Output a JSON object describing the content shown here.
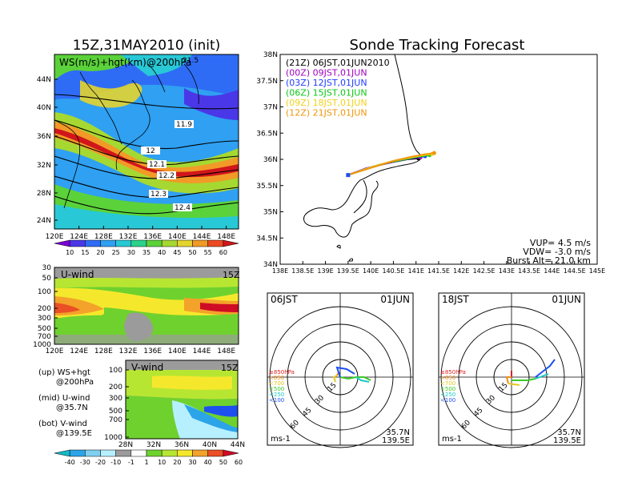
{
  "left": {
    "title": "15Z,31MAY2010 (init)",
    "map_label": "WS(m/s)+hgt(km)@200hPa",
    "map_corner": "21.5",
    "lat_ticks": [
      "44N",
      "40N",
      "36N",
      "32N",
      "28N",
      "24N"
    ],
    "lon_ticks": [
      "120E",
      "124E",
      "128E",
      "132E",
      "136E",
      "140E",
      "144E",
      "148E"
    ],
    "contour_labels": [
      "11.9",
      "12",
      "12.1",
      "12.2",
      "12.3",
      "12.4"
    ],
    "ws_colorbar": [
      "10",
      "15",
      "20",
      "25",
      "30",
      "35",
      "40",
      "45",
      "50",
      "55",
      "60"
    ],
    "ws_colors": [
      "#7a00d6",
      "#4a37e8",
      "#2f6cf5",
      "#2fa0f2",
      "#28c8d6",
      "#2bd28a",
      "#5bd23a",
      "#a6d832",
      "#e4d42f",
      "#f29a27",
      "#ec4b21",
      "#d0161b"
    ],
    "uwind": {
      "label": "U-wind",
      "time": "15Z",
      "p_ticks": [
        "30",
        "50",
        "100",
        "200",
        "300",
        "500",
        "700",
        "1000"
      ],
      "lon_ticks": [
        "120E",
        "124E",
        "128E",
        "132E",
        "136E",
        "140E",
        "144E",
        "148E"
      ]
    },
    "vwind": {
      "label": "V-wind",
      "time": "15Z",
      "p_ticks": [
        "100",
        "200",
        "300",
        "500",
        "700",
        "1000"
      ],
      "lat_ticks": [
        "28N",
        "32N",
        "36N",
        "40N",
        "44N"
      ]
    },
    "legend": {
      "l1a": "(up) WS+hgt",
      "l1b": "@200hPa",
      "l2a": "(mid) U-wind",
      "l2b": "@35.7N",
      "l3a": "(bot) V-wind",
      "l3b": "@139.5E"
    },
    "wind_colorbar": [
      "-40",
      "-30",
      "-20",
      "-10",
      "-1",
      "1",
      "10",
      "20",
      "30",
      "40",
      "50",
      "60"
    ],
    "wind_colors": [
      "#15b9c6",
      "#2ca4e8",
      "#7fd0f0",
      "#b6f0ff",
      "#9b9b9b",
      "#ffffff",
      "#6fd12e",
      "#b7e632",
      "#f5e82c",
      "#f3a22a",
      "#ea4f25",
      "#cf0c25"
    ]
  },
  "right": {
    "title": "Sonde Tracking Forecast",
    "lat_ticks": [
      "38N",
      "37.5N",
      "37N",
      "36.5N",
      "36N",
      "35.5N",
      "35N",
      "34.5N",
      "34N"
    ],
    "lon_ticks": [
      "138E",
      "138.5E",
      "139E",
      "139.5E",
      "140E",
      "140.5E",
      "141E",
      "141.5E",
      "142E",
      "142.5E",
      "143E",
      "143.5E",
      "144E",
      "144.5E",
      "145E"
    ],
    "launches": [
      {
        "label": "(21Z) 06JST,01JUN2010",
        "color": "#000000"
      },
      {
        "label": "(00Z) 09JST,01JUN",
        "color": "#a000c0"
      },
      {
        "label": "(03Z) 12JST,01JUN",
        "color": "#1e3cff"
      },
      {
        "label": "(06Z) 15JST,01JUN",
        "color": "#0ac814"
      },
      {
        "label": "(09Z) 18JST,01JUN",
        "color": "#f0d21e"
      },
      {
        "label": "(12Z) 21JST,01JUN",
        "color": "#f0960a"
      }
    ],
    "params": {
      "vup": "VUP= 4.5 m/s",
      "vdw": "VDW= -3.0 m/s",
      "burst": "Burst Alt= 21.0 km"
    },
    "polar_left": {
      "time": "06JST",
      "date": "01JUN",
      "loc1": "35.7N",
      "loc2": "139.5E",
      "unit": "ms-1"
    },
    "polar_right": {
      "time": "18JST",
      "date": "01JUN",
      "loc1": "35.7N",
      "loc2": "139.5E",
      "unit": "ms-1"
    },
    "polar_rings": [
      "15",
      "30",
      "45",
      "60"
    ],
    "pressure_levels": [
      {
        "label": "≥850hPa",
        "color": "#e01e1e"
      },
      {
        "label": "<850",
        "color": "#f08c1e"
      },
      {
        "label": "<700",
        "color": "#e6c81e"
      },
      {
        "label": "<500",
        "color": "#3cc828"
      },
      {
        "label": "<250",
        "color": "#1ec8c8"
      },
      {
        "label": "<100",
        "color": "#1e50f0"
      }
    ]
  },
  "chart_data": [
    {
      "type": "heatmap",
      "title": "15Z,31MAY2010 (init)",
      "subtitle": "WS(m/s)+hgt(km)@200hPa",
      "xlim": [
        120,
        150
      ],
      "ylim": [
        22,
        47
      ],
      "colorbar": [
        10,
        15,
        20,
        25,
        30,
        35,
        40,
        45,
        50,
        55,
        60
      ],
      "contours": [
        {
          "label": "11.9",
          "value": 11.9
        },
        {
          "label": "12",
          "value": 12
        },
        {
          "label": "12.1",
          "value": 12.1
        },
        {
          "label": "12.2",
          "value": 12.2
        },
        {
          "label": "12.3",
          "value": 12.3
        },
        {
          "label": "12.4",
          "value": 12.4
        }
      ]
    },
    {
      "type": "heatmap",
      "title": "U-wind",
      "x_ticks": [
        "120E",
        "124E",
        "128E",
        "132E",
        "136E",
        "140E",
        "144E",
        "148E"
      ],
      "y_ticks": [
        30,
        50,
        100,
        200,
        300,
        500,
        700,
        1000
      ]
    },
    {
      "type": "heatmap",
      "title": "V-wind",
      "x_ticks": [
        "28N",
        "32N",
        "36N",
        "40N",
        "44N"
      ],
      "y_ticks": [
        100,
        200,
        300,
        500,
        700,
        1000
      ],
      "colorbar": [
        -40,
        -30,
        -20,
        -10,
        -1,
        1,
        10,
        20,
        30,
        40,
        50,
        60
      ]
    },
    {
      "type": "line",
      "title": "Sonde Tracking Forecast",
      "xlim": [
        138,
        145
      ],
      "ylim": [
        34,
        38
      ],
      "series": [
        {
          "name": "(21Z) 06JST,01JUN2010",
          "x": [
            139.5,
            139.9,
            140.2,
            140.5,
            140.8,
            141.05
          ],
          "y": [
            35.7,
            35.82,
            35.9,
            35.95,
            36.0,
            36.02
          ]
        },
        {
          "name": "(00Z) 09JST,01JUN",
          "x": [
            139.5,
            139.9,
            140.3,
            140.6,
            140.9,
            141.1
          ],
          "y": [
            35.7,
            35.83,
            35.91,
            35.97,
            36.02,
            36.04
          ]
        },
        {
          "name": "(03Z) 12JST,01JUN",
          "x": [
            139.5,
            139.95,
            140.35,
            140.7,
            141.0,
            141.2
          ],
          "y": [
            35.7,
            35.84,
            35.93,
            35.99,
            36.04,
            36.06
          ]
        },
        {
          "name": "(06Z) 15JST,01JUN",
          "x": [
            139.5,
            140.0,
            140.4,
            140.75,
            141.05,
            141.3
          ],
          "y": [
            35.7,
            35.84,
            35.94,
            36.0,
            36.05,
            36.08
          ]
        },
        {
          "name": "(09Z) 18JST,01JUN",
          "x": [
            139.5,
            140.0,
            140.45,
            140.8,
            141.1,
            141.35
          ],
          "y": [
            35.7,
            35.85,
            35.96,
            36.02,
            36.07,
            36.1
          ]
        },
        {
          "name": "(12Z) 21JST,01JUN",
          "x": [
            139.5,
            140.05,
            140.5,
            140.85,
            141.15,
            141.4
          ],
          "y": [
            35.7,
            35.85,
            35.97,
            36.04,
            36.09,
            36.12
          ]
        }
      ]
    }
  ]
}
